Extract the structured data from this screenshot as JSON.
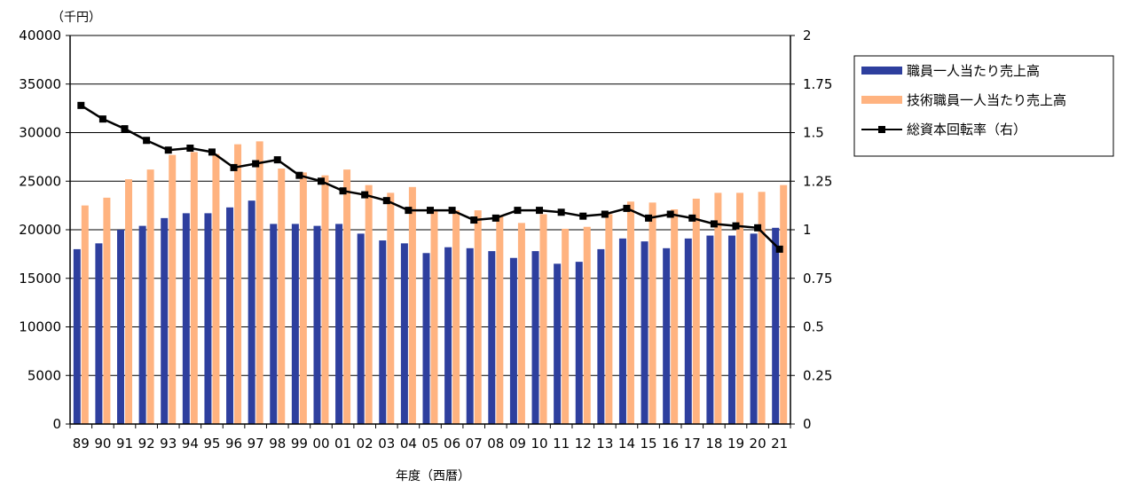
{
  "chart_data": {
    "type": "bar",
    "title": "",
    "xlabel": "年度（西暦）",
    "ylabel": "（千円）",
    "ylim": [
      0,
      40000
    ],
    "y2lim": [
      0,
      2
    ],
    "y_ticks": [
      0,
      5000,
      10000,
      15000,
      20000,
      25000,
      30000,
      35000,
      40000
    ],
    "y2_ticks": [
      "0",
      "0.25",
      "0.5",
      "0.75",
      "1",
      "1.25",
      "1.5",
      "1.75",
      "2"
    ],
    "grid": true,
    "legend_position": "right",
    "categories": [
      "89",
      "90",
      "91",
      "92",
      "93",
      "94",
      "95",
      "96",
      "97",
      "98",
      "99",
      "00",
      "01",
      "02",
      "03",
      "04",
      "05",
      "06",
      "07",
      "08",
      "09",
      "10",
      "11",
      "12",
      "13",
      "14",
      "15",
      "16",
      "17",
      "18",
      "19",
      "20",
      "21"
    ],
    "series": [
      {
        "name": "職員一人当たり売上高",
        "type": "bar",
        "axis": "left",
        "color": "#2E3F9E",
        "values": [
          18000,
          18600,
          20000,
          20400,
          21200,
          21700,
          21700,
          22300,
          23000,
          20600,
          20600,
          20400,
          20600,
          19600,
          18900,
          18600,
          17600,
          18200,
          18100,
          17800,
          17100,
          17800,
          16500,
          16700,
          18000,
          19100,
          18800,
          18100,
          19100,
          19400,
          19400,
          19600,
          20200
        ]
      },
      {
        "name": "技術職員一人当たり売上高",
        "type": "bar",
        "axis": "left",
        "color": "#FFB380",
        "values": [
          22500,
          23300,
          25200,
          26200,
          27700,
          28000,
          27800,
          28800,
          29100,
          26300,
          25900,
          25600,
          26200,
          24600,
          23800,
          24400,
          22100,
          22000,
          22000,
          21500,
          20700,
          21600,
          20100,
          20300,
          21600,
          22900,
          22800,
          22100,
          23200,
          23800,
          23800,
          23900,
          24600
        ]
      },
      {
        "name": "総資本回転率（右）",
        "type": "line",
        "axis": "right",
        "color": "#000000",
        "values": [
          1.64,
          1.57,
          1.52,
          1.46,
          1.41,
          1.42,
          1.4,
          1.32,
          1.34,
          1.36,
          1.28,
          1.25,
          1.2,
          1.18,
          1.15,
          1.1,
          1.1,
          1.1,
          1.05,
          1.06,
          1.1,
          1.1,
          1.09,
          1.07,
          1.08,
          1.11,
          1.06,
          1.08,
          1.06,
          1.03,
          1.02,
          1.01,
          0.9
        ]
      }
    ]
  }
}
